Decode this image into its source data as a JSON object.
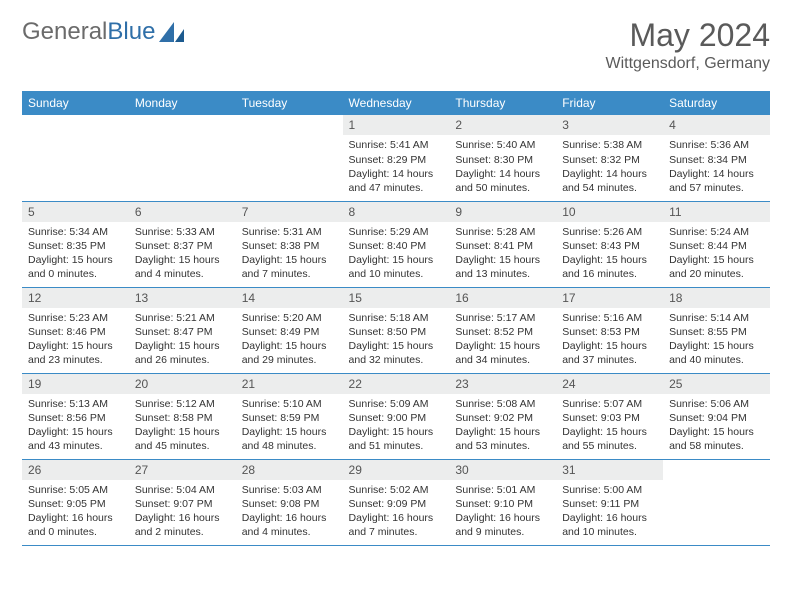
{
  "logo": {
    "text1": "General",
    "text2": "Blue"
  },
  "header": {
    "title": "May 2024",
    "location": "Wittgensdorf, Germany"
  },
  "colors": {
    "header_bg": "#3b8bc6",
    "header_text": "#ffffff",
    "daynum_bg": "#eceded",
    "border": "#3b8bc6",
    "logo_gray": "#6b6b6b",
    "logo_blue": "#2f6fa8"
  },
  "weekdays": [
    "Sunday",
    "Monday",
    "Tuesday",
    "Wednesday",
    "Thursday",
    "Friday",
    "Saturday"
  ],
  "weeks": [
    [
      null,
      null,
      null,
      {
        "n": "1",
        "sr": "Sunrise: 5:41 AM",
        "ss": "Sunset: 8:29 PM",
        "d1": "Daylight: 14 hours",
        "d2": "and 47 minutes."
      },
      {
        "n": "2",
        "sr": "Sunrise: 5:40 AM",
        "ss": "Sunset: 8:30 PM",
        "d1": "Daylight: 14 hours",
        "d2": "and 50 minutes."
      },
      {
        "n": "3",
        "sr": "Sunrise: 5:38 AM",
        "ss": "Sunset: 8:32 PM",
        "d1": "Daylight: 14 hours",
        "d2": "and 54 minutes."
      },
      {
        "n": "4",
        "sr": "Sunrise: 5:36 AM",
        "ss": "Sunset: 8:34 PM",
        "d1": "Daylight: 14 hours",
        "d2": "and 57 minutes."
      }
    ],
    [
      {
        "n": "5",
        "sr": "Sunrise: 5:34 AM",
        "ss": "Sunset: 8:35 PM",
        "d1": "Daylight: 15 hours",
        "d2": "and 0 minutes."
      },
      {
        "n": "6",
        "sr": "Sunrise: 5:33 AM",
        "ss": "Sunset: 8:37 PM",
        "d1": "Daylight: 15 hours",
        "d2": "and 4 minutes."
      },
      {
        "n": "7",
        "sr": "Sunrise: 5:31 AM",
        "ss": "Sunset: 8:38 PM",
        "d1": "Daylight: 15 hours",
        "d2": "and 7 minutes."
      },
      {
        "n": "8",
        "sr": "Sunrise: 5:29 AM",
        "ss": "Sunset: 8:40 PM",
        "d1": "Daylight: 15 hours",
        "d2": "and 10 minutes."
      },
      {
        "n": "9",
        "sr": "Sunrise: 5:28 AM",
        "ss": "Sunset: 8:41 PM",
        "d1": "Daylight: 15 hours",
        "d2": "and 13 minutes."
      },
      {
        "n": "10",
        "sr": "Sunrise: 5:26 AM",
        "ss": "Sunset: 8:43 PM",
        "d1": "Daylight: 15 hours",
        "d2": "and 16 minutes."
      },
      {
        "n": "11",
        "sr": "Sunrise: 5:24 AM",
        "ss": "Sunset: 8:44 PM",
        "d1": "Daylight: 15 hours",
        "d2": "and 20 minutes."
      }
    ],
    [
      {
        "n": "12",
        "sr": "Sunrise: 5:23 AM",
        "ss": "Sunset: 8:46 PM",
        "d1": "Daylight: 15 hours",
        "d2": "and 23 minutes."
      },
      {
        "n": "13",
        "sr": "Sunrise: 5:21 AM",
        "ss": "Sunset: 8:47 PM",
        "d1": "Daylight: 15 hours",
        "d2": "and 26 minutes."
      },
      {
        "n": "14",
        "sr": "Sunrise: 5:20 AM",
        "ss": "Sunset: 8:49 PM",
        "d1": "Daylight: 15 hours",
        "d2": "and 29 minutes."
      },
      {
        "n": "15",
        "sr": "Sunrise: 5:18 AM",
        "ss": "Sunset: 8:50 PM",
        "d1": "Daylight: 15 hours",
        "d2": "and 32 minutes."
      },
      {
        "n": "16",
        "sr": "Sunrise: 5:17 AM",
        "ss": "Sunset: 8:52 PM",
        "d1": "Daylight: 15 hours",
        "d2": "and 34 minutes."
      },
      {
        "n": "17",
        "sr": "Sunrise: 5:16 AM",
        "ss": "Sunset: 8:53 PM",
        "d1": "Daylight: 15 hours",
        "d2": "and 37 minutes."
      },
      {
        "n": "18",
        "sr": "Sunrise: 5:14 AM",
        "ss": "Sunset: 8:55 PM",
        "d1": "Daylight: 15 hours",
        "d2": "and 40 minutes."
      }
    ],
    [
      {
        "n": "19",
        "sr": "Sunrise: 5:13 AM",
        "ss": "Sunset: 8:56 PM",
        "d1": "Daylight: 15 hours",
        "d2": "and 43 minutes."
      },
      {
        "n": "20",
        "sr": "Sunrise: 5:12 AM",
        "ss": "Sunset: 8:58 PM",
        "d1": "Daylight: 15 hours",
        "d2": "and 45 minutes."
      },
      {
        "n": "21",
        "sr": "Sunrise: 5:10 AM",
        "ss": "Sunset: 8:59 PM",
        "d1": "Daylight: 15 hours",
        "d2": "and 48 minutes."
      },
      {
        "n": "22",
        "sr": "Sunrise: 5:09 AM",
        "ss": "Sunset: 9:00 PM",
        "d1": "Daylight: 15 hours",
        "d2": "and 51 minutes."
      },
      {
        "n": "23",
        "sr": "Sunrise: 5:08 AM",
        "ss": "Sunset: 9:02 PM",
        "d1": "Daylight: 15 hours",
        "d2": "and 53 minutes."
      },
      {
        "n": "24",
        "sr": "Sunrise: 5:07 AM",
        "ss": "Sunset: 9:03 PM",
        "d1": "Daylight: 15 hours",
        "d2": "and 55 minutes."
      },
      {
        "n": "25",
        "sr": "Sunrise: 5:06 AM",
        "ss": "Sunset: 9:04 PM",
        "d1": "Daylight: 15 hours",
        "d2": "and 58 minutes."
      }
    ],
    [
      {
        "n": "26",
        "sr": "Sunrise: 5:05 AM",
        "ss": "Sunset: 9:05 PM",
        "d1": "Daylight: 16 hours",
        "d2": "and 0 minutes."
      },
      {
        "n": "27",
        "sr": "Sunrise: 5:04 AM",
        "ss": "Sunset: 9:07 PM",
        "d1": "Daylight: 16 hours",
        "d2": "and 2 minutes."
      },
      {
        "n": "28",
        "sr": "Sunrise: 5:03 AM",
        "ss": "Sunset: 9:08 PM",
        "d1": "Daylight: 16 hours",
        "d2": "and 4 minutes."
      },
      {
        "n": "29",
        "sr": "Sunrise: 5:02 AM",
        "ss": "Sunset: 9:09 PM",
        "d1": "Daylight: 16 hours",
        "d2": "and 7 minutes."
      },
      {
        "n": "30",
        "sr": "Sunrise: 5:01 AM",
        "ss": "Sunset: 9:10 PM",
        "d1": "Daylight: 16 hours",
        "d2": "and 9 minutes."
      },
      {
        "n": "31",
        "sr": "Sunrise: 5:00 AM",
        "ss": "Sunset: 9:11 PM",
        "d1": "Daylight: 16 hours",
        "d2": "and 10 minutes."
      },
      null
    ]
  ]
}
